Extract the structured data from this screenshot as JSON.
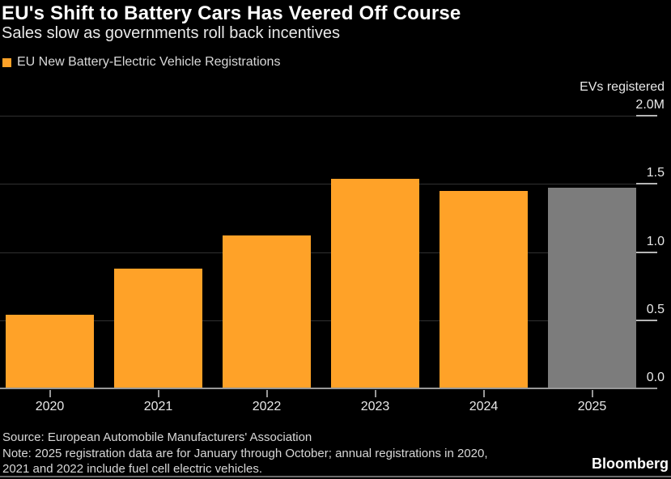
{
  "chart_data": {
    "type": "bar",
    "title": "EU's Shift to Battery Cars Has Veered Off Course",
    "subtitle": "Sales slow as governments roll back incentives",
    "series_name": "EU New Battery-Electric Vehicle Registrations",
    "y_axis_title": "EVs registered",
    "categories": [
      "2020",
      "2021",
      "2022",
      "2023",
      "2024",
      "2025"
    ],
    "values": [
      0.54,
      0.88,
      1.12,
      1.54,
      1.45,
      1.47
    ],
    "unit": "millions of EVs registered",
    "ylim": [
      0,
      2.0
    ],
    "y_tick_values": [
      2.0,
      1.5,
      1.0,
      0.5,
      0.0
    ],
    "y_tick_labels": [
      "2.0M",
      "1.5",
      "1.0",
      "0.5",
      "0.0"
    ],
    "grid": true,
    "legend_position": "top-left",
    "bar_colors": [
      "#FFA228",
      "#FFA228",
      "#FFA228",
      "#FFA228",
      "#FFA228",
      "#7C7C7C"
    ]
  },
  "colors": {
    "background": "#000000",
    "accent_orange": "#FFA228",
    "partial_year_gray": "#7C7C7C"
  },
  "footer": {
    "source": "Source: European Automobile Manufacturers' Association",
    "note_line1": "Note: 2025 registration data are for January through October; annual registrations in 2020,",
    "note_line2": "2021 and 2022 include fuel cell electric vehicles.",
    "brand": "Bloomberg"
  }
}
